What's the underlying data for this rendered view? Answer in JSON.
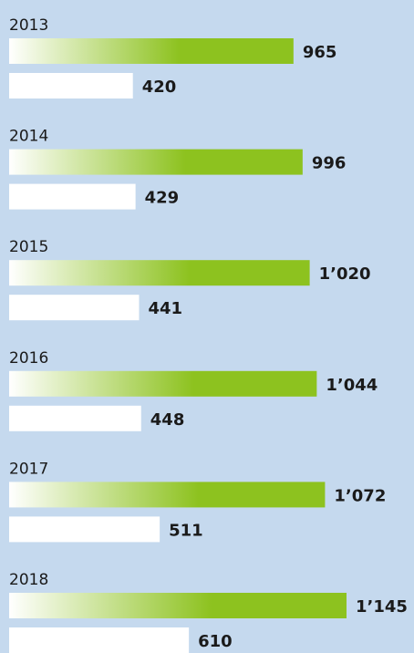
{
  "chart_data": {
    "type": "bar",
    "orientation": "horizontal",
    "categories": [
      "2013",
      "2014",
      "2015",
      "2016",
      "2017",
      "2018"
    ],
    "series": [
      {
        "color": "#8dc21f",
        "values": [
          965,
          996,
          1020,
          1044,
          1072,
          1145
        ],
        "value_labels": [
          "965",
          "996",
          "1’020",
          "1’044",
          "1’072",
          "1’145"
        ]
      },
      {
        "color": "#ffffff",
        "values": [
          420,
          429,
          441,
          448,
          511,
          610
        ]
      }
    ]
  }
}
